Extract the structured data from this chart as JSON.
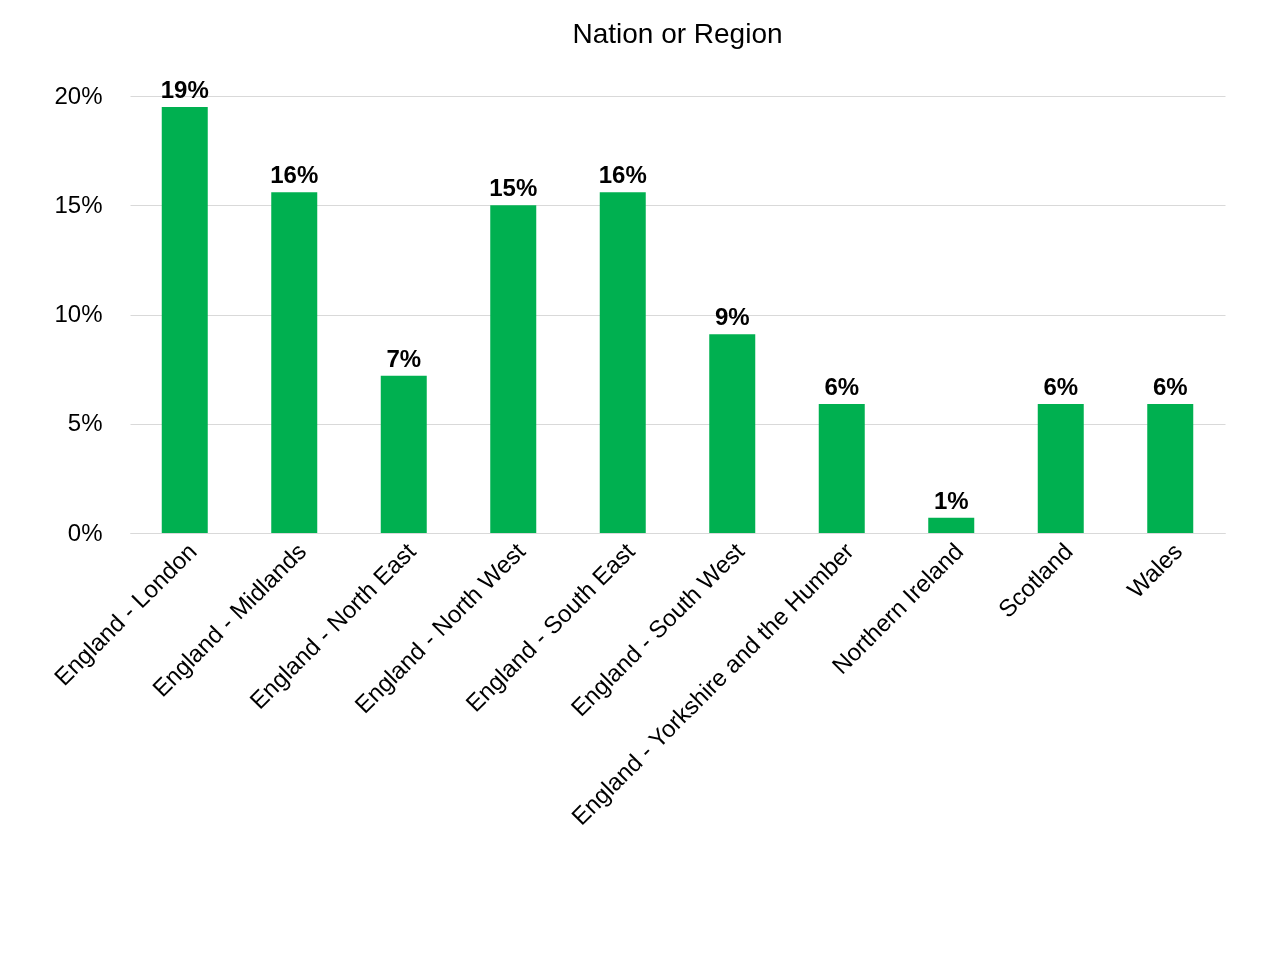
{
  "chart_data": {
    "type": "bar",
    "title": "Nation or Region",
    "categories": [
      "England - London",
      "England - Midlands",
      "England - North East",
      "England - North West",
      "England - South East",
      "England - South West",
      "England - Yorkshire and the Humber",
      "Northern Ireland",
      "Scotland",
      "Wales"
    ],
    "values": [
      19.5,
      15.6,
      7.2,
      15.0,
      15.6,
      9.1,
      5.9,
      0.7,
      5.9,
      5.9
    ],
    "value_labels": [
      "19%",
      "16%",
      "7%",
      "15%",
      "16%",
      "9%",
      "6%",
      "1%",
      "6%",
      "6%"
    ],
    "color": "#00b050",
    "ylim": [
      0,
      20
    ],
    "yticks": [
      {
        "value": 0,
        "label": "0%"
      },
      {
        "value": 5,
        "label": "5%"
      },
      {
        "value": 10,
        "label": "10%"
      },
      {
        "value": 15,
        "label": "15%"
      },
      {
        "value": 20,
        "label": "20%"
      }
    ],
    "grid": "y"
  }
}
